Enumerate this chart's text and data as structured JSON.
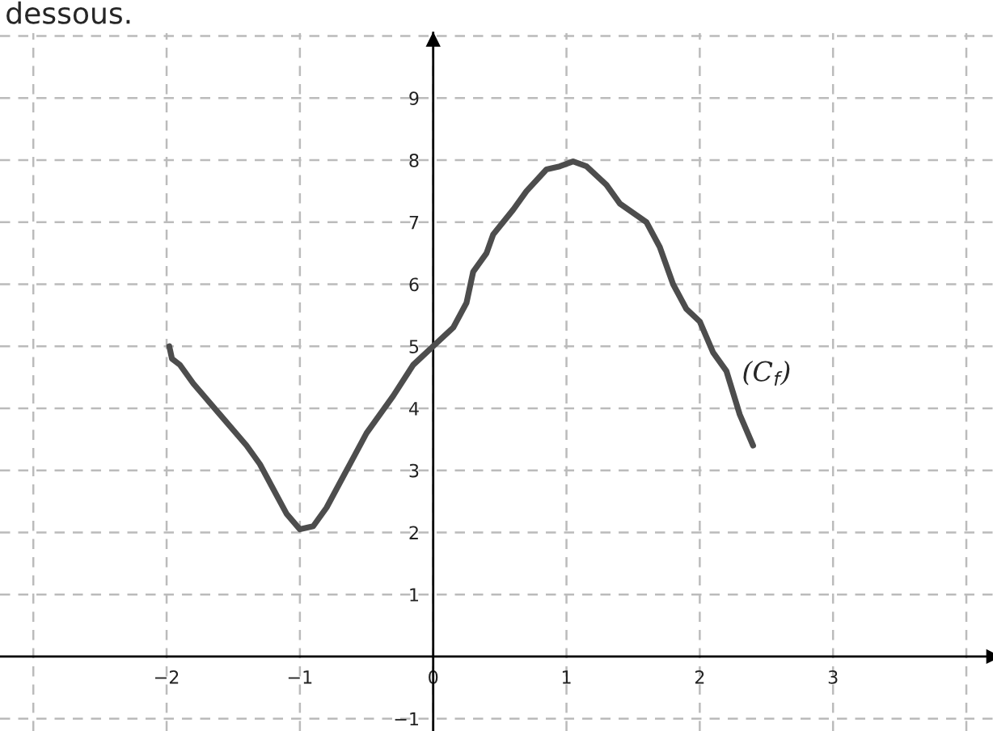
{
  "chart_data": {
    "type": "line",
    "annotations": [
      "dessous."
    ],
    "series": [
      {
        "name": "(C$_{f}$)",
        "color": "#4d4d4d",
        "x": [
          -1.98,
          -1.96,
          -1.9,
          -1.8,
          -1.6,
          -1.4,
          -1.3,
          -1.2,
          -1.1,
          -1.0,
          -0.9,
          -0.8,
          -0.7,
          -0.6,
          -0.5,
          -0.3,
          -0.15,
          0,
          0.15,
          0.25,
          0.3,
          0.4,
          0.45,
          0.6,
          0.7,
          0.85,
          0.95,
          1.05,
          1.15,
          1.3,
          1.4,
          1.6,
          1.7,
          1.8,
          1.9,
          2.0,
          2.1,
          2.2,
          2.3,
          2.4
        ],
        "values": [
          5.0,
          4.8,
          4.7,
          4.4,
          3.9,
          3.4,
          3.1,
          2.7,
          2.3,
          2.05,
          2.1,
          2.4,
          2.8,
          3.2,
          3.6,
          4.2,
          4.7,
          5.0,
          5.3,
          5.7,
          6.2,
          6.5,
          6.8,
          7.2,
          7.5,
          7.85,
          7.9,
          7.98,
          7.9,
          7.6,
          7.3,
          7.0,
          6.6,
          6.0,
          5.6,
          5.4,
          4.9,
          4.6,
          3.9,
          3.4
        ]
      }
    ],
    "xlim": [
      -3.25,
      4.2
    ],
    "ylim": [
      -1.2,
      10.05
    ],
    "xticks": [
      {
        "value": -3,
        "label": null
      },
      {
        "value": -2,
        "label": "−2"
      },
      {
        "value": -1,
        "label": "−1"
      },
      0,
      1,
      2,
      3,
      {
        "value": 4,
        "label": null
      }
    ],
    "yticks": [
      {
        "value": -1,
        "label": "−1"
      },
      1,
      2,
      3,
      4,
      5,
      6,
      7,
      8,
      9,
      {
        "value": 10,
        "label": null
      }
    ],
    "grid": true,
    "marker": "none",
    "line_style": "solid"
  }
}
